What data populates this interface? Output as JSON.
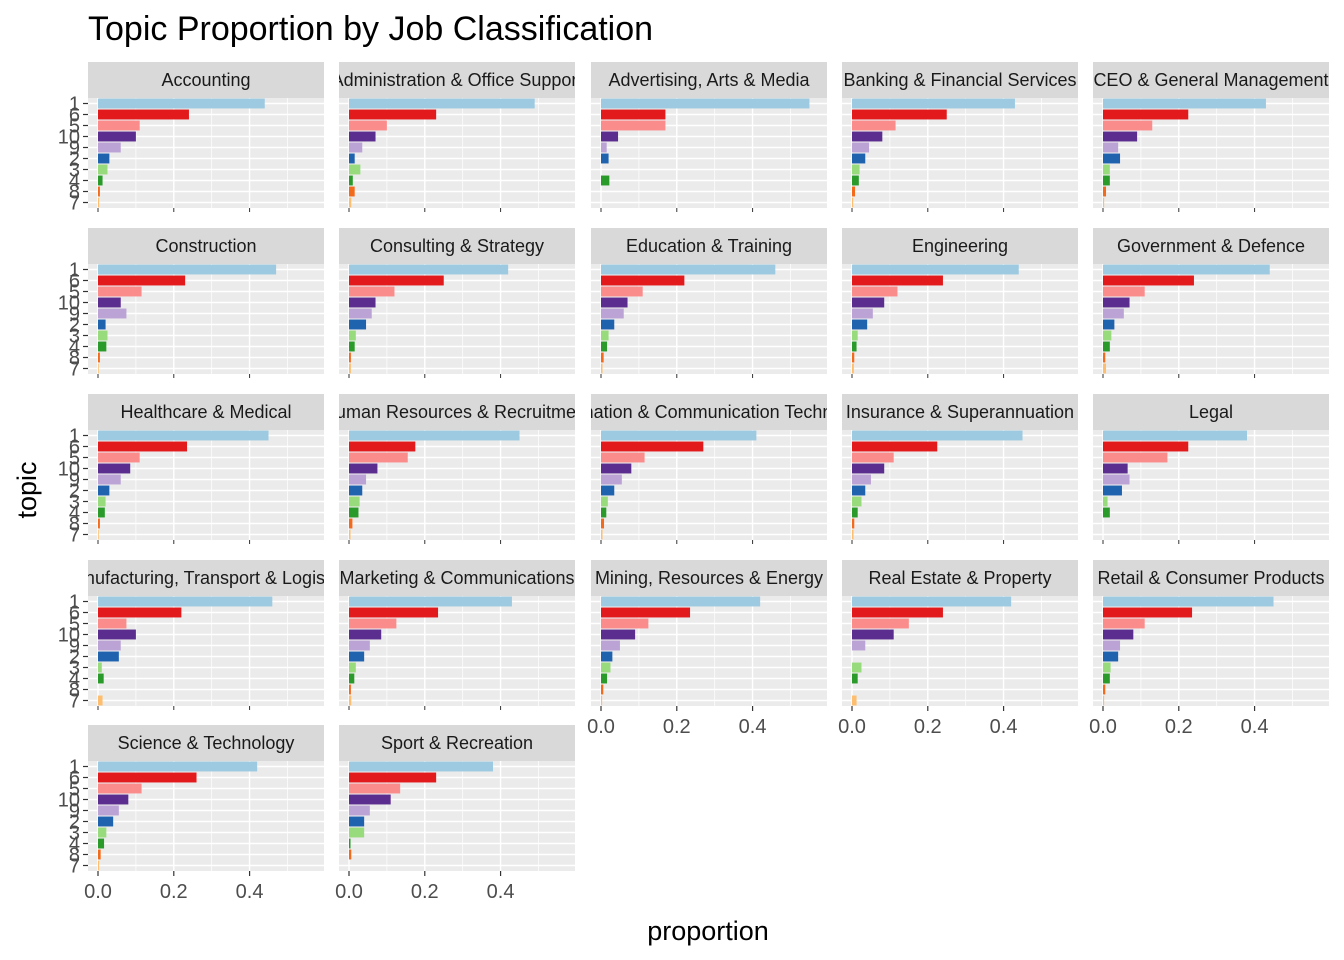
{
  "chart_data": {
    "type": "bar",
    "title": "Topic Proportion by Job Classification",
    "xlabel": "proportion",
    "ylabel": "topic",
    "xlim": [
      0,
      0.57
    ],
    "x_ticks": [
      "0.0",
      "0.2",
      "0.4"
    ],
    "topic_order": [
      "1",
      "6",
      "5",
      "10",
      "9",
      "2",
      "3",
      "4",
      "8",
      "7"
    ],
    "topic_colors": {
      "1": "#9ecae1",
      "6": "#e31a1c",
      "5": "#fb8c8c",
      "10": "#5b2d8e",
      "9": "#bca3d6",
      "2": "#1f62ae",
      "3": "#98db7c",
      "4": "#2a9a2a",
      "8": "#f26b1d",
      "7": "#fdbf6f"
    },
    "grid": true,
    "legend": "none",
    "panels": [
      {
        "name": "Accounting",
        "values": [
          0.44,
          0.24,
          0.11,
          0.1,
          0.06,
          0.03,
          0.025,
          0.012,
          0.005,
          0.003
        ]
      },
      {
        "name": "Administration & Office Support",
        "values": [
          0.49,
          0.23,
          0.1,
          0.07,
          0.035,
          0.015,
          0.03,
          0.01,
          0.015,
          0.006
        ]
      },
      {
        "name": "Advertising, Arts & Media",
        "values": [
          0.55,
          0.17,
          0.17,
          0.045,
          0.015,
          0.02,
          0.0,
          0.022,
          0.0,
          0.0
        ]
      },
      {
        "name": "Banking & Financial Services",
        "values": [
          0.43,
          0.25,
          0.115,
          0.08,
          0.045,
          0.035,
          0.02,
          0.018,
          0.008,
          0.003
        ]
      },
      {
        "name": "CEO & General Management",
        "values": [
          0.43,
          0.225,
          0.13,
          0.09,
          0.04,
          0.045,
          0.018,
          0.018,
          0.008,
          0.003
        ]
      },
      {
        "name": "Construction",
        "values": [
          0.47,
          0.23,
          0.115,
          0.06,
          0.075,
          0.02,
          0.025,
          0.022,
          0.005,
          0.002
        ]
      },
      {
        "name": "Consulting & Strategy",
        "values": [
          0.42,
          0.25,
          0.12,
          0.07,
          0.06,
          0.045,
          0.018,
          0.015,
          0.005,
          0.005
        ]
      },
      {
        "name": "Education & Training",
        "values": [
          0.46,
          0.22,
          0.11,
          0.07,
          0.06,
          0.035,
          0.02,
          0.016,
          0.007,
          0.004
        ]
      },
      {
        "name": "Engineering",
        "values": [
          0.44,
          0.24,
          0.12,
          0.085,
          0.055,
          0.04,
          0.015,
          0.012,
          0.006,
          0.005
        ]
      },
      {
        "name": "Government & Defence",
        "values": [
          0.44,
          0.24,
          0.11,
          0.07,
          0.055,
          0.03,
          0.022,
          0.018,
          0.006,
          0.008
        ]
      },
      {
        "name": "Healthcare & Medical",
        "values": [
          0.45,
          0.235,
          0.11,
          0.085,
          0.06,
          0.03,
          0.02,
          0.018,
          0.005,
          0.002
        ]
      },
      {
        "name": "Human Resources & Recruitment",
        "values": [
          0.45,
          0.175,
          0.155,
          0.075,
          0.045,
          0.035,
          0.028,
          0.025,
          0.009,
          0.004
        ]
      },
      {
        "name": "Information & Communication Technology",
        "values": [
          0.41,
          0.27,
          0.115,
          0.08,
          0.055,
          0.035,
          0.018,
          0.014,
          0.008,
          0.004
        ]
      },
      {
        "name": "Insurance & Superannuation",
        "values": [
          0.45,
          0.225,
          0.11,
          0.085,
          0.05,
          0.035,
          0.025,
          0.015,
          0.006,
          0.004
        ]
      },
      {
        "name": "Legal",
        "values": [
          0.38,
          0.225,
          0.17,
          0.065,
          0.07,
          0.05,
          0.012,
          0.018,
          0.0,
          0.0
        ]
      },
      {
        "name": "Manufacturing, Transport & Logistics",
        "values": [
          0.46,
          0.22,
          0.075,
          0.1,
          0.06,
          0.055,
          0.01,
          0.015,
          0.0,
          0.012
        ]
      },
      {
        "name": "Marketing & Communications",
        "values": [
          0.43,
          0.235,
          0.125,
          0.085,
          0.055,
          0.04,
          0.018,
          0.014,
          0.005,
          0.006
        ]
      },
      {
        "name": "Mining, Resources & Energy",
        "values": [
          0.42,
          0.235,
          0.125,
          0.09,
          0.05,
          0.03,
          0.025,
          0.016,
          0.006,
          0.003
        ]
      },
      {
        "name": "Real Estate & Property",
        "values": [
          0.42,
          0.24,
          0.15,
          0.11,
          0.035,
          0.0,
          0.025,
          0.015,
          0.0,
          0.012
        ]
      },
      {
        "name": "Retail & Consumer Products",
        "values": [
          0.45,
          0.235,
          0.11,
          0.08,
          0.045,
          0.04,
          0.02,
          0.018,
          0.006,
          0.003
        ]
      },
      {
        "name": "Science & Technology",
        "values": [
          0.42,
          0.26,
          0.115,
          0.08,
          0.055,
          0.04,
          0.022,
          0.016,
          0.007,
          0.003
        ]
      },
      {
        "name": "Sport & Recreation",
        "values": [
          0.38,
          0.23,
          0.135,
          0.11,
          0.055,
          0.04,
          0.04,
          0.004,
          0.006,
          0.0
        ]
      }
    ]
  }
}
